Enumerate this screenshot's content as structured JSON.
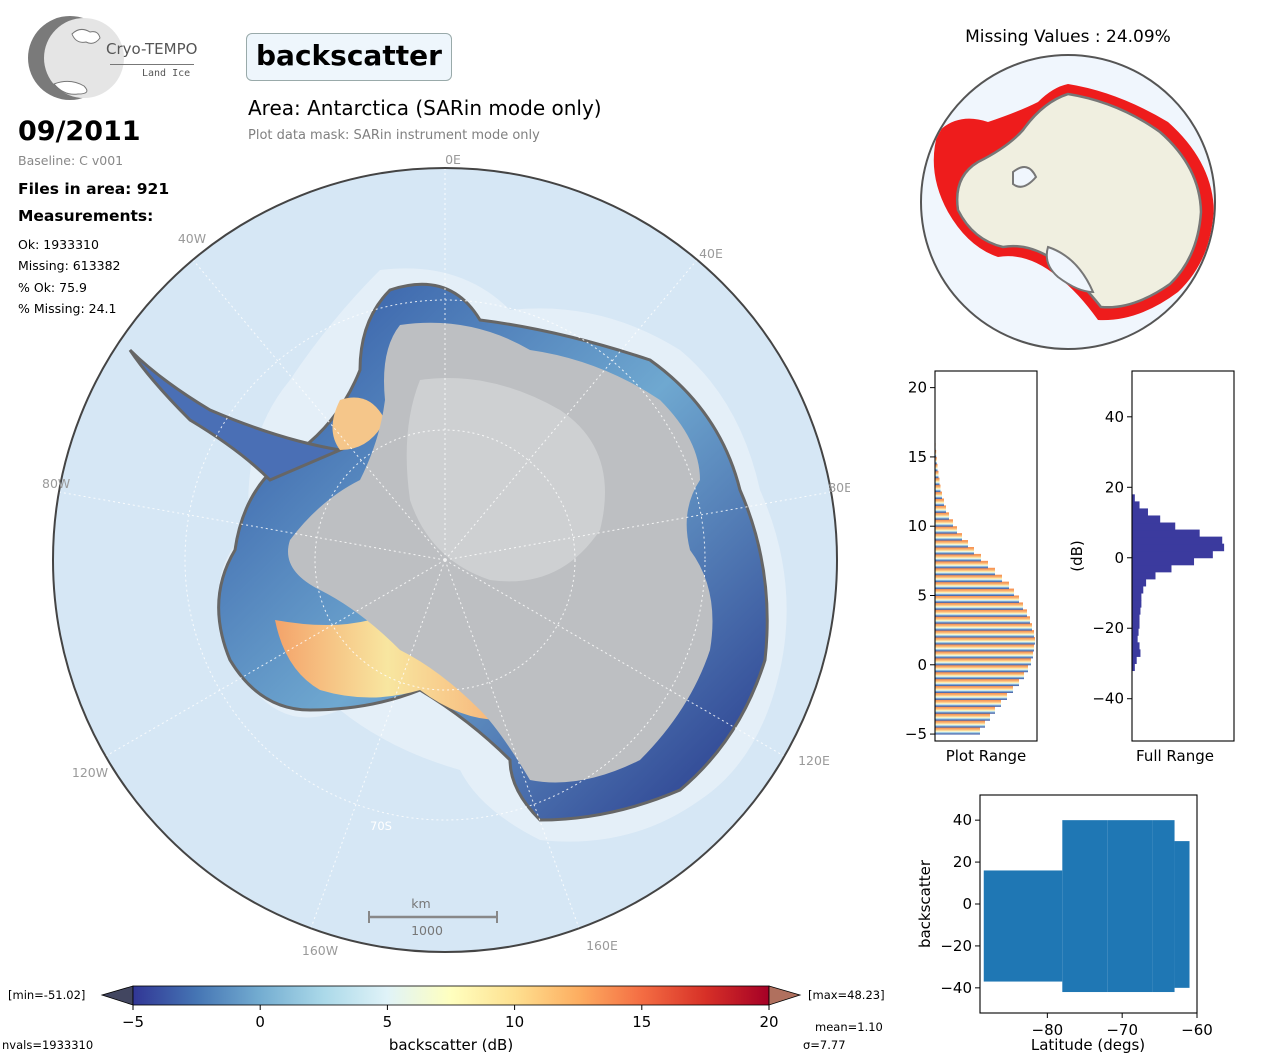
{
  "header": {
    "logo_name": "Cryo-TEMPO",
    "logo_sub": "Land Ice",
    "variable": "backscatter",
    "area_title": "Area: Antarctica (SARin mode only)",
    "mask_note": "Plot data mask: SARin instrument mode only"
  },
  "info": {
    "date": "09/2011",
    "baseline": "Baseline: C v001",
    "files": "Files in area: 921",
    "measurements_label": "Measurements:",
    "ok": "Ok: 1933310",
    "missing": "Missing: 613382",
    "pct_ok": "% Ok: 75.9",
    "pct_missing": "% Missing: 24.1"
  },
  "map": {
    "lon_labels": [
      "0E",
      "40E",
      "80E",
      "120E",
      "160E",
      "160W",
      "120W",
      "80W",
      "40W"
    ],
    "lat_label": "70S",
    "scale_unit": "km",
    "scale_value": "1000"
  },
  "missing_panel": {
    "title": "Missing Values : 24.09%"
  },
  "colorbar": {
    "min_label": "[min=-51.02]",
    "max_label": "[max=48.23]",
    "ticks": [
      "−5",
      "0",
      "5",
      "10",
      "15",
      "20"
    ],
    "label": "backscatter (dB)",
    "mean": "mean=1.10",
    "sigma": "σ=7.77",
    "nvals": "nvals=1933310",
    "colors": [
      "#313695",
      "#4575b4",
      "#74add1",
      "#abd9e9",
      "#e0f3f8",
      "#ffffbf",
      "#fee090",
      "#fdae61",
      "#f46d43",
      "#d73027",
      "#a50026"
    ]
  },
  "chart_data": [
    {
      "type": "bar",
      "orientation": "horizontal",
      "xlabel": "Plot Range",
      "ylim": [
        -5.5,
        21.2
      ],
      "yticks": [
        "−5",
        "0",
        "5",
        "10",
        "15",
        "20"
      ],
      "bin_centers": [
        -4.75,
        -4.25,
        -3.75,
        -3.25,
        -2.75,
        -2.25,
        -1.75,
        -1.25,
        -0.75,
        -0.25,
        0.25,
        0.75,
        1.25,
        1.75,
        2.25,
        2.75,
        3.25,
        3.75,
        4.25,
        4.75,
        5.25,
        5.75,
        6.25,
        6.75,
        7.25,
        7.75,
        8.25,
        8.75,
        9.25,
        9.75,
        10.25,
        10.75,
        11.25,
        11.75,
        12.25,
        12.75,
        13.25,
        13.75,
        14.25,
        14.75,
        15.25,
        15.75
      ],
      "values": [
        0.45,
        0.5,
        0.55,
        0.6,
        0.66,
        0.72,
        0.78,
        0.84,
        0.89,
        0.93,
        0.96,
        0.98,
        0.99,
        1.0,
        0.99,
        0.97,
        0.95,
        0.92,
        0.88,
        0.84,
        0.79,
        0.74,
        0.67,
        0.6,
        0.53,
        0.46,
        0.39,
        0.33,
        0.27,
        0.22,
        0.18,
        0.14,
        0.11,
        0.09,
        0.07,
        0.055,
        0.045,
        0.035,
        0.025,
        0.018,
        0.012,
        0.006
      ]
    },
    {
      "type": "bar",
      "orientation": "horizontal",
      "xlabel": "Full Range",
      "ylabel": "(dB)",
      "ylim": [
        -52,
        53
      ],
      "yticks": [
        "−40",
        "−20",
        "0",
        "20",
        "40"
      ],
      "bin_centers": [
        -31,
        -29,
        -27,
        -25,
        -23,
        -21,
        -19,
        -17,
        -15,
        -13,
        -11,
        -9,
        -7,
        -5,
        -3,
        -1,
        1,
        3,
        5,
        7,
        9,
        11,
        13,
        15,
        17
      ],
      "values": [
        0.03,
        0.05,
        0.09,
        0.08,
        0.06,
        0.07,
        0.08,
        0.08,
        0.09,
        0.1,
        0.1,
        0.12,
        0.15,
        0.25,
        0.42,
        0.66,
        0.86,
        0.98,
        0.96,
        0.72,
        0.46,
        0.3,
        0.17,
        0.08,
        0.03
      ]
    },
    {
      "type": "scatter",
      "xlabel": "Latitude (degs)",
      "ylabel": "backscatter",
      "xlim": [
        -89,
        -60
      ],
      "ylim": [
        -52,
        52
      ],
      "xticks": [
        "−80",
        "−70",
        "−60"
      ],
      "yticks": [
        "−40",
        "−20",
        "0",
        "20",
        "40"
      ],
      "color": "#1f77b4"
    }
  ]
}
